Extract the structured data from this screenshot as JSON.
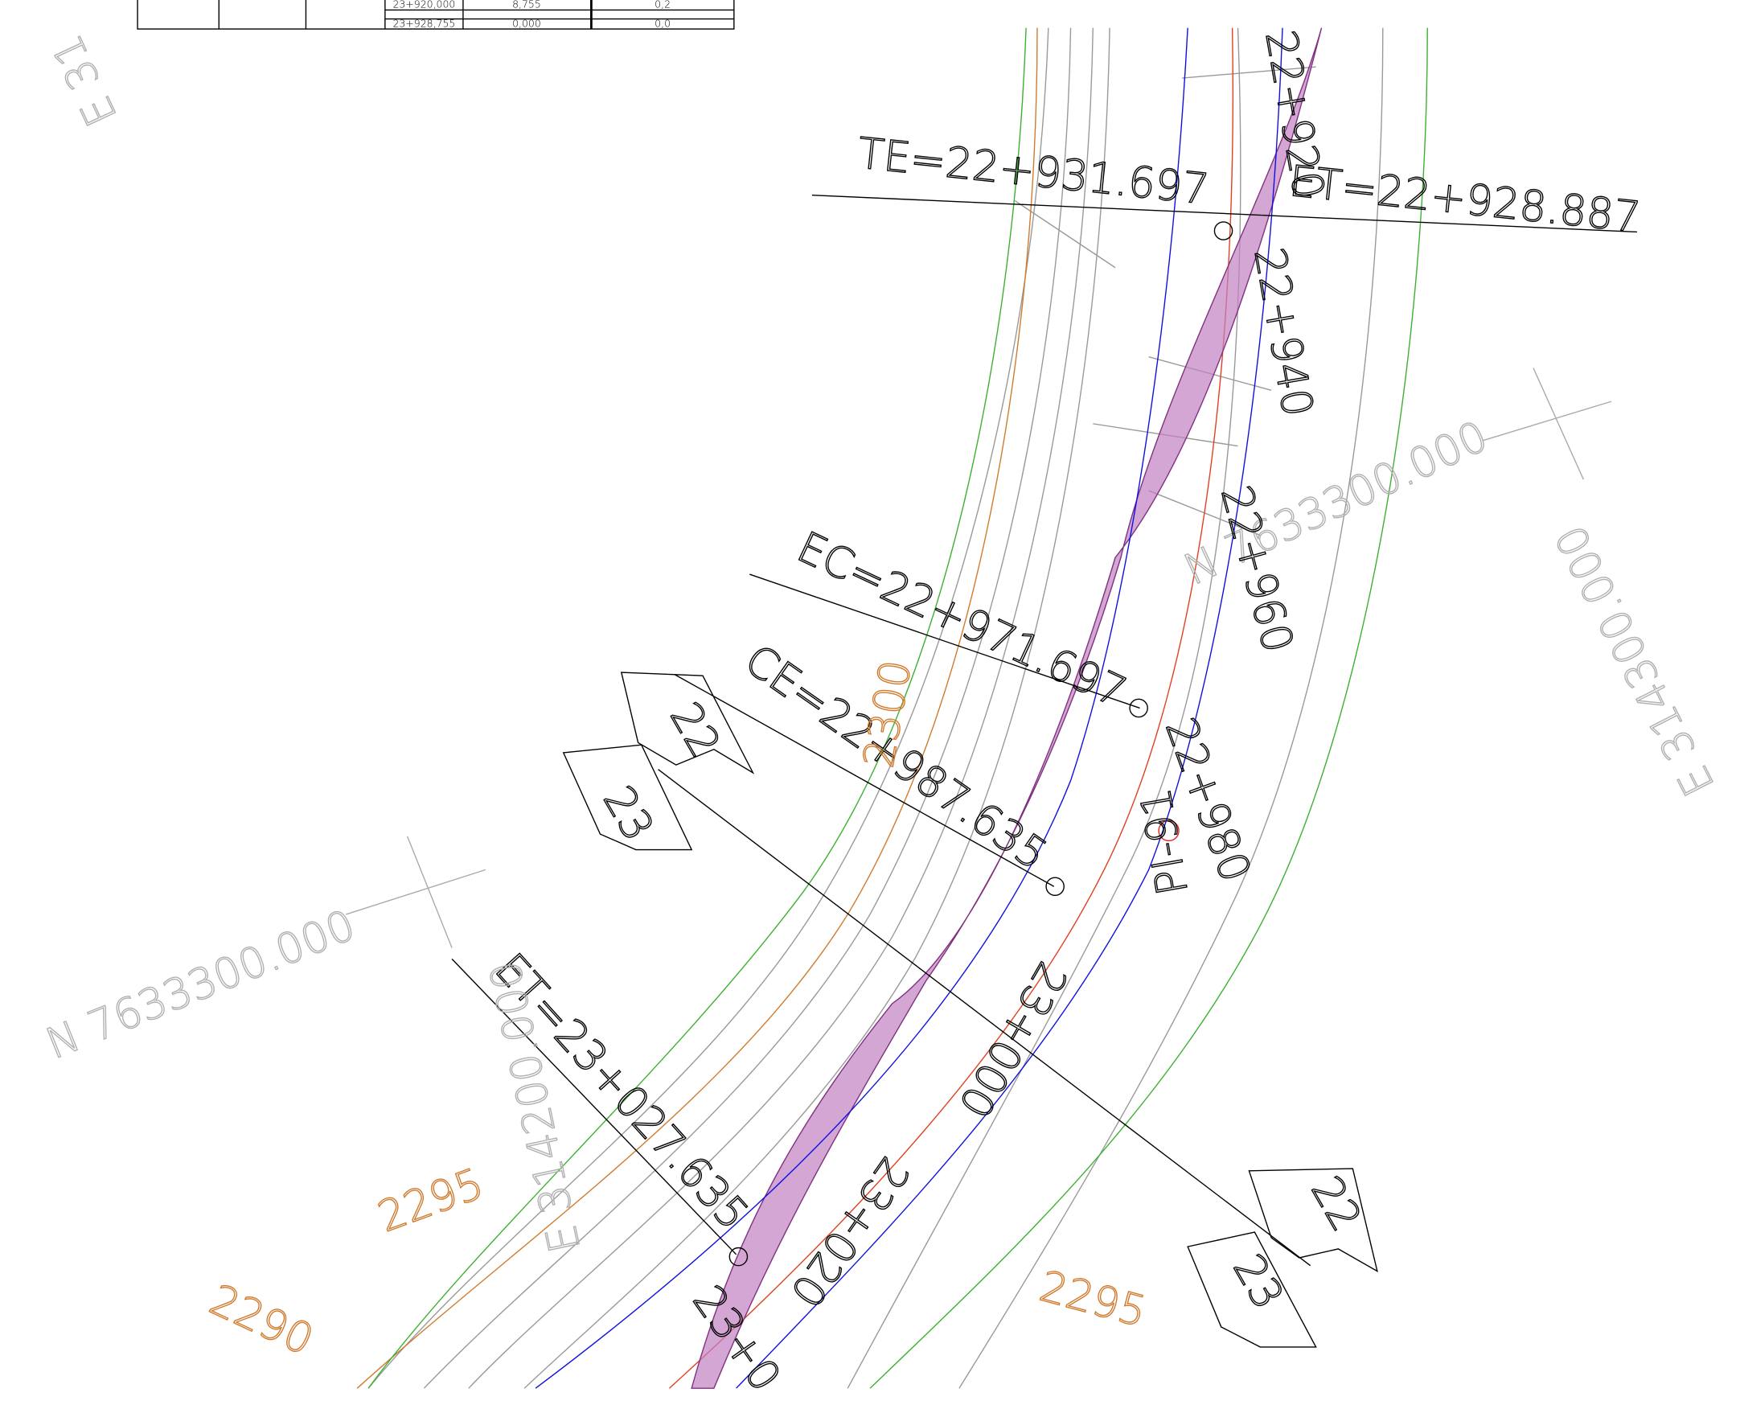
{
  "table": {
    "rows": [
      [
        "23+920,000",
        "8,755",
        "0,2"
      ],
      [
        "23+928,755",
        "0,000",
        "0,0"
      ]
    ]
  },
  "labels": {
    "te": "TE=22+931.697",
    "et1": "ET=22+928.887",
    "ec": "EC=22+971.697",
    "ce": "CE=22+987.635",
    "et2": "ET=23+027.635",
    "pi": "PI-91",
    "n_left": "N 7633300.000",
    "n_right": "N 7633300.000",
    "e_right": "E 314300.000",
    "e_left": "E 314200.000",
    "e_top": "E 31"
  },
  "stations": [
    "22+920",
    "22+940",
    "22+960",
    "22+980",
    "23+000",
    "23+020",
    "23+0"
  ],
  "contours": [
    "2300",
    "2295",
    "2295",
    "2290"
  ],
  "arrows": [
    "22",
    "23",
    "22",
    "23"
  ]
}
